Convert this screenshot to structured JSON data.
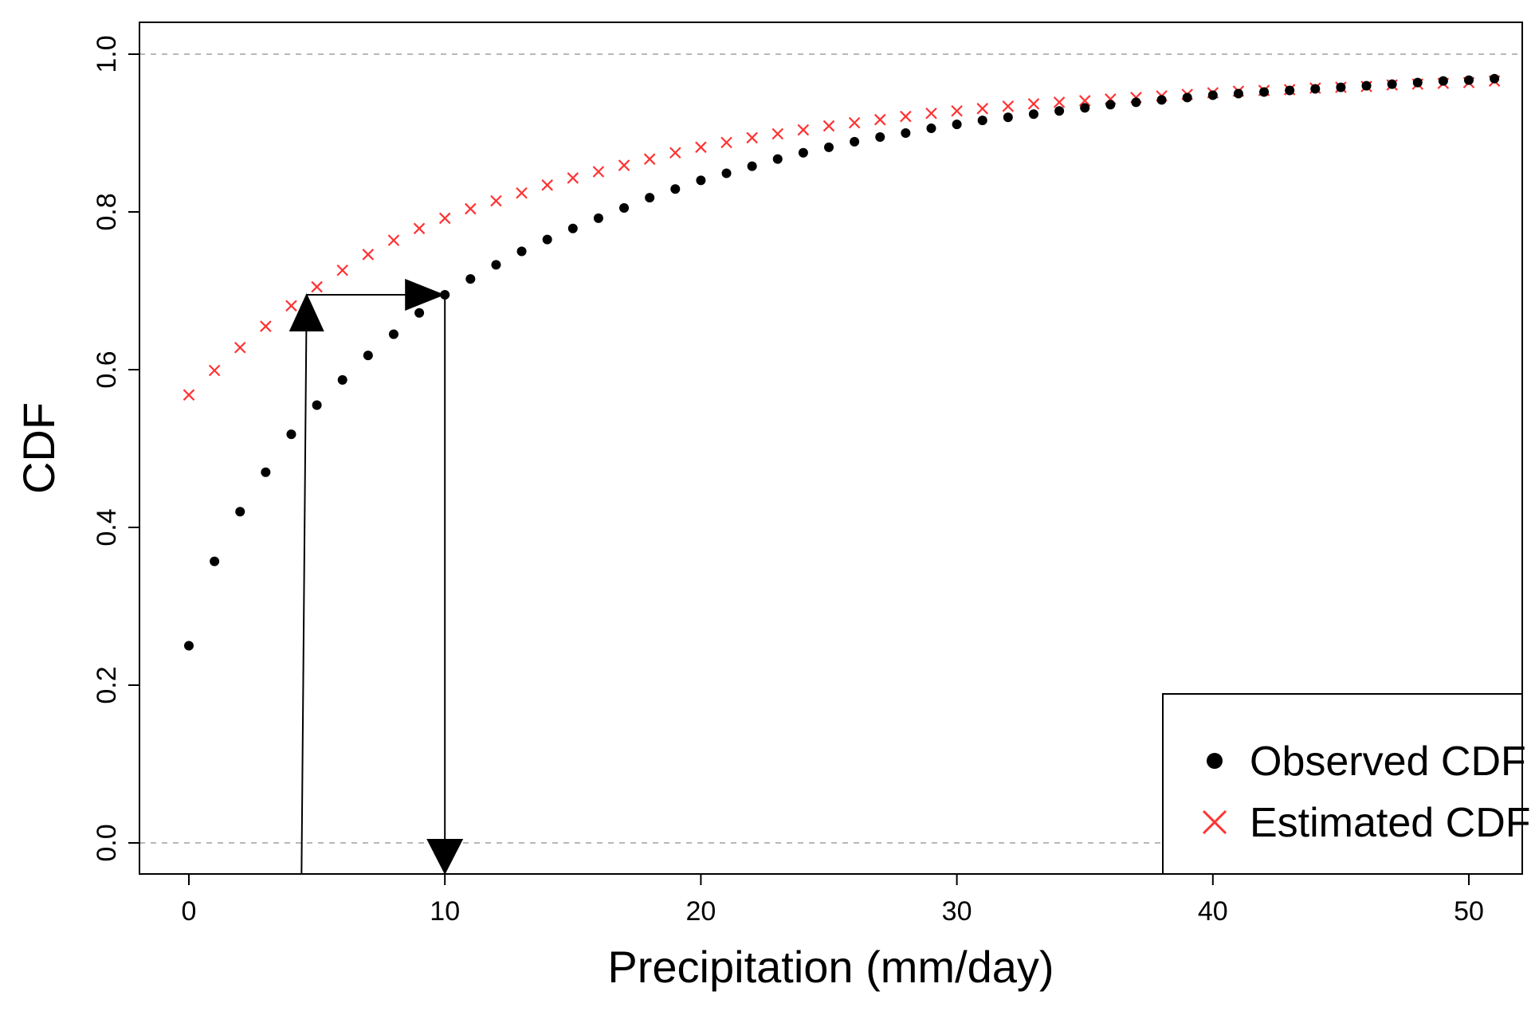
{
  "chart_data": {
    "type": "scatter",
    "title": "",
    "xlabel": "Precipitation (mm/day)",
    "ylabel": "CDF",
    "xlim": [
      -2,
      52
    ],
    "ylim": [
      -0.04,
      1.04
    ],
    "x_ticks": [
      0,
      10,
      20,
      30,
      40,
      50
    ],
    "y_ticks": [
      0.0,
      0.2,
      0.4,
      0.6,
      0.8,
      1.0
    ],
    "x_tick_labels": [
      "0",
      "10",
      "20",
      "30",
      "40",
      "50"
    ],
    "y_tick_labels": [
      "0.0",
      "0.2",
      "0.4",
      "0.6",
      "0.8",
      "1.0"
    ],
    "reference_lines": [
      0.0,
      1.0
    ],
    "legend_position": "bottom-right",
    "series": [
      {
        "name": "Observed CDF",
        "marker": "dot",
        "color": "#000000",
        "x": [
          0,
          1,
          2,
          3,
          4,
          5,
          6,
          7,
          8,
          9,
          10,
          11,
          12,
          13,
          14,
          15,
          16,
          17,
          18,
          19,
          20,
          21,
          22,
          23,
          24,
          25,
          26,
          27,
          28,
          29,
          30,
          31,
          32,
          33,
          34,
          35,
          36,
          37,
          38,
          39,
          40,
          41,
          42,
          43,
          44,
          45,
          46,
          47,
          48,
          49,
          50,
          51
        ],
        "values": [
          0.25,
          0.357,
          0.42,
          0.47,
          0.518,
          0.555,
          0.587,
          0.618,
          0.645,
          0.672,
          0.695,
          0.715,
          0.733,
          0.75,
          0.765,
          0.779,
          0.792,
          0.805,
          0.818,
          0.829,
          0.84,
          0.849,
          0.858,
          0.867,
          0.875,
          0.882,
          0.889,
          0.895,
          0.9,
          0.906,
          0.911,
          0.916,
          0.92,
          0.924,
          0.928,
          0.932,
          0.936,
          0.939,
          0.942,
          0.945,
          0.948,
          0.95,
          0.952,
          0.954,
          0.956,
          0.958,
          0.96,
          0.962,
          0.964,
          0.966,
          0.967,
          0.969
        ]
      },
      {
        "name": "Estimated CDF",
        "marker": "x",
        "color": "#ff3333",
        "x": [
          0,
          1,
          2,
          3,
          4,
          5,
          6,
          7,
          8,
          9,
          10,
          11,
          12,
          13,
          14,
          15,
          16,
          17,
          18,
          19,
          20,
          21,
          22,
          23,
          24,
          25,
          26,
          27,
          28,
          29,
          30,
          31,
          32,
          33,
          34,
          35,
          36,
          37,
          38,
          39,
          40,
          41,
          42,
          43,
          44,
          45,
          46,
          47,
          48,
          49,
          50,
          51
        ],
        "values": [
          0.568,
          0.599,
          0.628,
          0.655,
          0.681,
          0.705,
          0.726,
          0.746,
          0.764,
          0.779,
          0.792,
          0.804,
          0.814,
          0.824,
          0.834,
          0.843,
          0.851,
          0.859,
          0.867,
          0.875,
          0.882,
          0.888,
          0.894,
          0.899,
          0.904,
          0.909,
          0.913,
          0.917,
          0.921,
          0.925,
          0.928,
          0.931,
          0.934,
          0.937,
          0.939,
          0.941,
          0.943,
          0.945,
          0.947,
          0.949,
          0.951,
          0.953,
          0.954,
          0.955,
          0.957,
          0.958,
          0.959,
          0.961,
          0.962,
          0.963,
          0.964,
          0.966
        ]
      }
    ],
    "annotations": [
      {
        "type": "arrow",
        "from": [
          4.4,
          0.0
        ],
        "to": [
          4.6,
          0.695
        ],
        "head": "large-up"
      },
      {
        "type": "arrow",
        "from": [
          4.6,
          0.695
        ],
        "to": [
          10.0,
          0.695
        ],
        "head": "large-right"
      },
      {
        "type": "arrow",
        "from": [
          10.0,
          0.695
        ],
        "to": [
          10.0,
          -0.04
        ],
        "head": "large-down"
      }
    ]
  }
}
